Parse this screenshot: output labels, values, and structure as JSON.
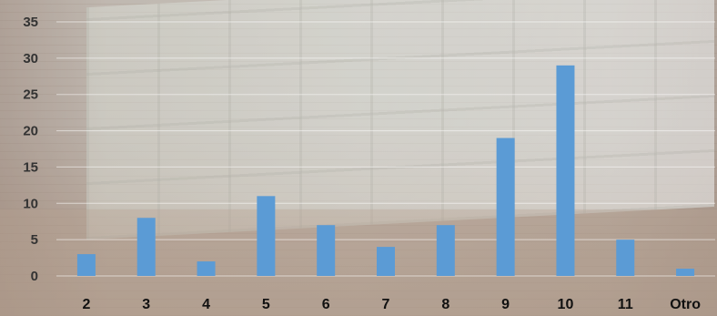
{
  "chart_data": {
    "type": "bar",
    "categories": [
      "2",
      "3",
      "4",
      "5",
      "6",
      "7",
      "8",
      "9",
      "10",
      "11",
      "Otro"
    ],
    "values": [
      3,
      8,
      2,
      11,
      7,
      4,
      7,
      19,
      29,
      5,
      1
    ],
    "title": "",
    "xlabel": "",
    "ylabel": "",
    "ylim": [
      0,
      35
    ],
    "yticks": [
      "0",
      "5",
      "10",
      "15",
      "20",
      "25",
      "30",
      "35"
    ],
    "grid": true,
    "legend": "none",
    "bar_color": "#5b9bd5"
  }
}
